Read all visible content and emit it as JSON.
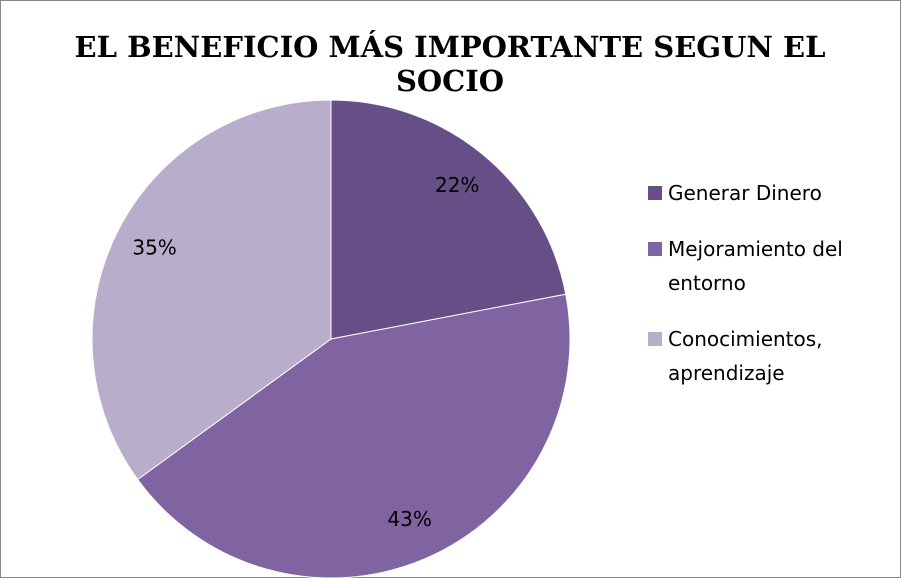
{
  "chart_data": {
    "type": "pie",
    "title": "EL BENEFICIO MÁS IMPORTANTE SEGUN EL SOCIO",
    "categories": [
      "Generar Dinero",
      "Mejoramiento del entorno",
      "Conocimientos, aprendizaje"
    ],
    "values": [
      22,
      43,
      35
    ],
    "value_labels": [
      "22%",
      "43%",
      "35%"
    ],
    "colors": [
      "#664f87",
      "#8064a2",
      "#b8adca"
    ],
    "legend": "right"
  }
}
